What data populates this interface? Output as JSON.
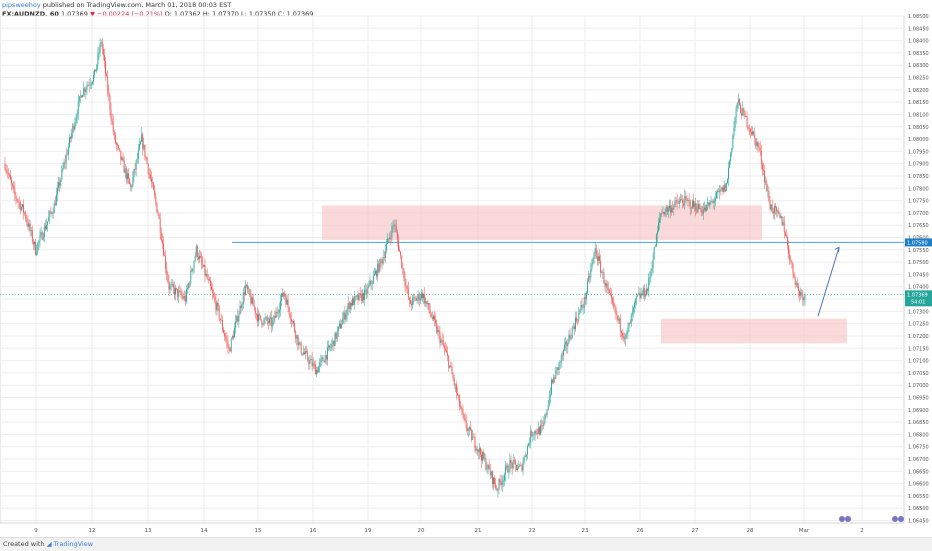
{
  "header": {
    "author": "pipsweehoy",
    "published": "published on TradingView.com, March 01, 2018 00:03 EST",
    "symbol": "FX:AUDNZD, 60",
    "last": "1.07369",
    "change": "−0.00224 (−0.21%)",
    "ohlc": "O: 1.07362  H: 1.07370  L: 1.07350  C: 1.07369"
  },
  "footer": {
    "created_with": "Created with",
    "brand": "TradingView"
  },
  "colors": {
    "up": "#26a69a",
    "down": "#ef5350",
    "zone": "#f6c9c9",
    "hline": "#4aa3df",
    "arrow": "#4a72c2",
    "grid": "#eeeeee"
  },
  "chart_data": {
    "type": "candlestick",
    "symbol": "FX:AUDNZD",
    "interval": "60",
    "ylim": [
      1.0644,
      1.085
    ],
    "y_ticks": [
      "1.08500",
      "1.08450",
      "1.08400",
      "1.08350",
      "1.08300",
      "1.08250",
      "1.08200",
      "1.08150",
      "1.08100",
      "1.08050",
      "1.08000",
      "1.07950",
      "1.07900",
      "1.07850",
      "1.07800",
      "1.07750",
      "1.07700",
      "1.07650",
      "1.07600",
      "1.07550",
      "1.07500",
      "1.07450",
      "1.07400",
      "1.07350",
      "1.07300",
      "1.07250",
      "1.07200",
      "1.07150",
      "1.07100",
      "1.07050",
      "1.07000",
      "1.06950",
      "1.06900",
      "1.06850",
      "1.06800",
      "1.06750",
      "1.06700",
      "1.06650",
      "1.06600",
      "1.06550",
      "1.06500",
      "1.06450"
    ],
    "x_labels": [
      "9",
      "12",
      "13",
      "14",
      "15",
      "16",
      "19",
      "20",
      "21",
      "22",
      "23",
      "26",
      "27",
      "28",
      "Mar",
      "2"
    ],
    "price_series_anchors": [
      {
        "t": 0,
        "price": 1.079
      },
      {
        "t": 8,
        "price": 1.0778
      },
      {
        "t": 18,
        "price": 1.077
      },
      {
        "t": 28,
        "price": 1.0755
      },
      {
        "t": 45,
        "price": 1.0773
      },
      {
        "t": 70,
        "price": 1.0819
      },
      {
        "t": 82,
        "price": 1.0826
      },
      {
        "t": 88,
        "price": 1.084
      },
      {
        "t": 100,
        "price": 1.08
      },
      {
        "t": 115,
        "price": 1.078
      },
      {
        "t": 125,
        "price": 1.08
      },
      {
        "t": 140,
        "price": 1.077
      },
      {
        "t": 150,
        "price": 1.074
      },
      {
        "t": 165,
        "price": 1.0735
      },
      {
        "t": 175,
        "price": 1.0755
      },
      {
        "t": 185,
        "price": 1.0743
      },
      {
        "t": 195,
        "price": 1.073
      },
      {
        "t": 205,
        "price": 1.0714
      },
      {
        "t": 220,
        "price": 1.074
      },
      {
        "t": 232,
        "price": 1.0727
      },
      {
        "t": 245,
        "price": 1.0725
      },
      {
        "t": 255,
        "price": 1.0738
      },
      {
        "t": 270,
        "price": 1.0715
      },
      {
        "t": 285,
        "price": 1.0706
      },
      {
        "t": 300,
        "price": 1.0717
      },
      {
        "t": 315,
        "price": 1.0733
      },
      {
        "t": 330,
        "price": 1.0737
      },
      {
        "t": 345,
        "price": 1.0751
      },
      {
        "t": 356,
        "price": 1.0766
      },
      {
        "t": 370,
        "price": 1.0733
      },
      {
        "t": 382,
        "price": 1.0737
      },
      {
        "t": 392,
        "price": 1.0726
      },
      {
        "t": 405,
        "price": 1.0711
      },
      {
        "t": 420,
        "price": 1.0685
      },
      {
        "t": 440,
        "price": 1.0668
      },
      {
        "t": 450,
        "price": 1.0658
      },
      {
        "t": 462,
        "price": 1.0668
      },
      {
        "t": 472,
        "price": 1.0666
      },
      {
        "t": 482,
        "price": 1.0681
      },
      {
        "t": 492,
        "price": 1.0682
      },
      {
        "t": 500,
        "price": 1.07
      },
      {
        "t": 510,
        "price": 1.0712
      },
      {
        "t": 522,
        "price": 1.0726
      },
      {
        "t": 530,
        "price": 1.0734
      },
      {
        "t": 540,
        "price": 1.0755
      },
      {
        "t": 552,
        "price": 1.0737
      },
      {
        "t": 562,
        "price": 1.0725
      },
      {
        "t": 568,
        "price": 1.0719
      },
      {
        "t": 578,
        "price": 1.0735
      },
      {
        "t": 588,
        "price": 1.0739
      },
      {
        "t": 600,
        "price": 1.077
      },
      {
        "t": 620,
        "price": 1.0775
      },
      {
        "t": 640,
        "price": 1.0771
      },
      {
        "t": 660,
        "price": 1.0781
      },
      {
        "t": 670,
        "price": 1.0815
      },
      {
        "t": 680,
        "price": 1.0806
      },
      {
        "t": 690,
        "price": 1.0796
      },
      {
        "t": 700,
        "price": 1.0773
      },
      {
        "t": 712,
        "price": 1.0766
      },
      {
        "t": 720,
        "price": 1.0748
      },
      {
        "t": 726,
        "price": 1.0738
      },
      {
        "t": 732,
        "price": 1.0736
      }
    ],
    "annotations": {
      "support_resistance_level": 1.0758,
      "current_price": 1.07369,
      "current_price_tag_secondary": "54:01",
      "zones": [
        {
          "price_top": 1.0773,
          "price_bottom": 1.0759
        },
        {
          "price_top": 1.0727,
          "price_bottom": 1.0717
        }
      ],
      "arrow": {
        "from_price": 1.0728,
        "to_price": 1.0756,
        "direction": "up"
      }
    },
    "title": "FX:AUDNZD, 60",
    "grid": true
  }
}
